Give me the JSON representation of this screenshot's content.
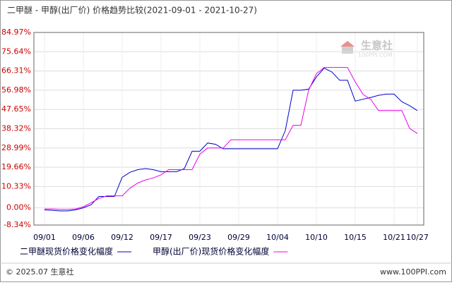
{
  "chart_data": {
    "type": "line",
    "title": "二甲醚 - 甲醇(出厂价) 价格趋势比较(2021-09-01 - 2021-10-27)",
    "categories": [
      "09/01",
      null,
      null,
      null,
      null,
      "09/06",
      null,
      null,
      null,
      null,
      "09/12",
      null,
      null,
      null,
      null,
      "09/17",
      null,
      null,
      null,
      null,
      "09/23",
      null,
      null,
      null,
      null,
      "09/29",
      null,
      null,
      null,
      null,
      "10/04",
      null,
      null,
      null,
      null,
      "10/10",
      null,
      null,
      null,
      null,
      "10/15",
      null,
      null,
      null,
      null,
      "10/21",
      null,
      null,
      "10/27"
    ],
    "series": [
      {
        "name": "二甲醚现货价格变化幅度",
        "color": "#0000cc",
        "values": [
          -1,
          -1.2,
          -1.5,
          -1.5,
          -1,
          0,
          1.5,
          5.5,
          5.5,
          5.5,
          14.8,
          17.2,
          18.5,
          19,
          18.5,
          17.5,
          17.5,
          17.5,
          19,
          27.4,
          27.4,
          31.4,
          30.8,
          28.6,
          28.6,
          28.6,
          28.6,
          28.6,
          28.6,
          28.6,
          28.6,
          37.5,
          56.98,
          56.98,
          57.5,
          63.4,
          67.7,
          65.8,
          61.8,
          61.8,
          51.7,
          52.6,
          53.5,
          54.5,
          55.1,
          55.1,
          51.4,
          49.5,
          47.1
        ]
      },
      {
        "name": "甲醇(出厂价)现货价格变化幅度",
        "color": "#ee00ee",
        "values": [
          -0.5,
          -0.5,
          -0.8,
          -0.8,
          -0.5,
          0.5,
          2.5,
          4.5,
          5.8,
          5.8,
          5.8,
          9.5,
          12,
          13.5,
          14.5,
          16,
          18.5,
          18.5,
          18.5,
          18.5,
          26,
          29,
          29,
          29,
          33,
          33,
          33,
          33,
          33,
          33,
          33,
          33,
          40,
          40,
          57,
          65,
          68,
          68,
          68,
          68,
          61,
          55,
          52.5,
          47.1,
          47.1,
          47.1,
          47.1,
          38.5,
          36
        ]
      }
    ],
    "ylim": [
      -8.34,
      84.97
    ],
    "yticks": [
      {
        "value": -8.34,
        "label": "-8.34%"
      },
      {
        "value": 0,
        "label": "0.00%"
      },
      {
        "value": 10.33,
        "label": "10.33%"
      },
      {
        "value": 19.66,
        "label": "19.66%"
      },
      {
        "value": 28.99,
        "label": "28.99%"
      },
      {
        "value": 38.32,
        "label": "38.32%"
      },
      {
        "value": 47.65,
        "label": "47.65%"
      },
      {
        "value": 56.98,
        "label": "56.98%"
      },
      {
        "value": 66.31,
        "label": "66.31%"
      },
      {
        "value": 75.64,
        "label": "75.64%"
      },
      {
        "value": 84.97,
        "label": "84.97%"
      }
    ],
    "grid": true,
    "watermark": {
      "name": "生意社",
      "site": "100PPI.COM"
    },
    "footer": {
      "left": "© 2025.07 生意社",
      "right": "www.100PPI.com"
    }
  }
}
